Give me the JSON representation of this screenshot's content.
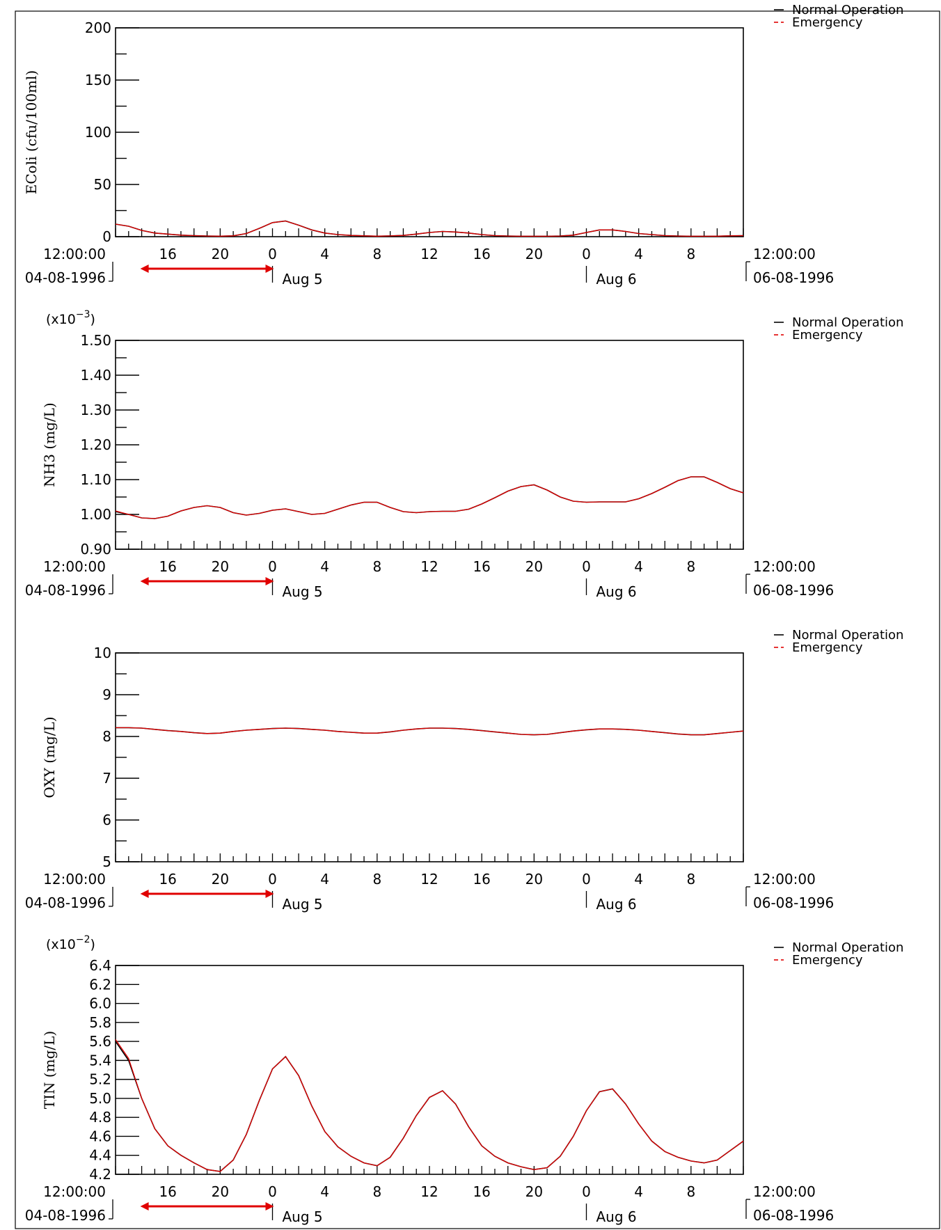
{
  "colors": {
    "normal": "#000000",
    "emergency": "#e00000",
    "arrow": "#e00000",
    "axis": "#000000"
  },
  "x_axis": {
    "hour_ticks": [
      "16",
      "20",
      "0",
      "4",
      "8",
      "12",
      "16",
      "20",
      "0",
      "4",
      "8"
    ],
    "start_time": "12:00:00",
    "start_date": "04-08-1996",
    "end_time": "12:00:00",
    "end_date": "06-08-1996",
    "day_labels": [
      "Aug 5",
      "Aug 6"
    ],
    "arrow_range_hours": [
      2,
      12
    ]
  },
  "legend": [
    "Normal Operation",
    "Emergency"
  ],
  "chart_data": [
    {
      "type": "line",
      "ylabel": "EColi (cfu/100ml)",
      "multiplier": "",
      "ylim": [
        0,
        200
      ],
      "y_ticks": [
        "0",
        "50",
        "100",
        "150",
        "200"
      ],
      "x_hours": [
        0,
        1,
        2,
        3,
        4,
        5,
        6,
        7,
        8,
        9,
        10,
        11,
        12,
        13,
        14,
        15,
        16,
        17,
        18,
        19,
        20,
        21,
        22,
        23,
        24,
        25,
        26,
        27,
        28,
        29,
        30,
        31,
        32,
        33,
        34,
        35,
        36,
        37,
        38,
        39,
        40,
        41,
        42,
        43,
        44,
        45,
        46,
        47,
        48
      ],
      "series": [
        {
          "name": "Normal Operation",
          "values": [
            12,
            10,
            6,
            3.5,
            2.5,
            1.5,
            1,
            0.6,
            0.5,
            0.8,
            3,
            8,
            13.5,
            15,
            11,
            6.5,
            3.5,
            2,
            1.2,
            0.8,
            0.5,
            0.7,
            1.2,
            2.5,
            4,
            5,
            4.5,
            3.5,
            2,
            1,
            0.6,
            0.4,
            0.4,
            0.4,
            0.6,
            1.5,
            4,
            6.5,
            6.5,
            5,
            3,
            2,
            1,
            0.6,
            0.4,
            0.4,
            0.5,
            0.8,
            1
          ]
        },
        {
          "name": "Emergency",
          "values": [
            12,
            10,
            6,
            3.5,
            2.5,
            1.5,
            1,
            0.6,
            0.5,
            0.8,
            3,
            8,
            13.5,
            15,
            11,
            6.5,
            3.5,
            2,
            1.2,
            0.8,
            0.5,
            0.7,
            1.2,
            2.5,
            4,
            5,
            4.5,
            3.5,
            2,
            1,
            0.6,
            0.4,
            0.4,
            0.4,
            0.6,
            1.5,
            4,
            6.5,
            6.5,
            5,
            3,
            2,
            1,
            0.6,
            0.4,
            0.4,
            0.5,
            0.8,
            1
          ]
        }
      ]
    },
    {
      "type": "line",
      "ylabel": "NH3 (mg/L)",
      "multiplier": "(x10",
      "multiplier_exp": "−3",
      "multiplier_close": ")",
      "ylim": [
        0.9,
        1.5
      ],
      "y_ticks": [
        "0.90",
        "1.00",
        "1.10",
        "1.20",
        "1.30",
        "1.40",
        "1.50"
      ],
      "x_hours": [
        0,
        1,
        2,
        3,
        4,
        5,
        6,
        7,
        8,
        9,
        10,
        11,
        12,
        13,
        14,
        15,
        16,
        17,
        18,
        19,
        20,
        21,
        22,
        23,
        24,
        25,
        26,
        27,
        28,
        29,
        30,
        31,
        32,
        33,
        34,
        35,
        36,
        37,
        38,
        39,
        40,
        41,
        42,
        43,
        44,
        45,
        46,
        47,
        48
      ],
      "series": [
        {
          "name": "Normal Operation",
          "values": [
            1.008,
            1.0,
            0.99,
            0.988,
            0.995,
            1.01,
            1.02,
            1.025,
            1.02,
            1.005,
            0.998,
            1.003,
            1.012,
            1.016,
            1.008,
            1.0,
            1.003,
            1.015,
            1.027,
            1.035,
            1.035,
            1.02,
            1.008,
            1.005,
            1.008,
            1.009,
            1.009,
            1.015,
            1.03,
            1.048,
            1.067,
            1.08,
            1.085,
            1.07,
            1.05,
            1.038,
            1.035,
            1.036,
            1.036,
            1.036,
            1.045,
            1.06,
            1.078,
            1.097,
            1.108,
            1.108,
            1.092,
            1.074,
            1.062
          ]
        },
        {
          "name": "Emergency",
          "values": [
            1.01,
            1.0,
            0.99,
            0.988,
            0.995,
            1.01,
            1.02,
            1.025,
            1.02,
            1.005,
            0.998,
            1.003,
            1.012,
            1.016,
            1.008,
            1.0,
            1.003,
            1.015,
            1.027,
            1.035,
            1.035,
            1.02,
            1.008,
            1.005,
            1.008,
            1.009,
            1.009,
            1.015,
            1.03,
            1.048,
            1.067,
            1.08,
            1.085,
            1.07,
            1.05,
            1.038,
            1.035,
            1.036,
            1.036,
            1.036,
            1.045,
            1.06,
            1.078,
            1.097,
            1.108,
            1.108,
            1.092,
            1.074,
            1.062
          ]
        }
      ]
    },
    {
      "type": "line",
      "ylabel": "OXY (mg/L)",
      "multiplier": "",
      "ylim": [
        5,
        10
      ],
      "y_ticks": [
        "5",
        "6",
        "7",
        "8",
        "9",
        "10"
      ],
      "x_hours": [
        0,
        1,
        2,
        3,
        4,
        5,
        6,
        7,
        8,
        9,
        10,
        11,
        12,
        13,
        14,
        15,
        16,
        17,
        18,
        19,
        20,
        21,
        22,
        23,
        24,
        25,
        26,
        27,
        28,
        29,
        30,
        31,
        32,
        33,
        34,
        35,
        36,
        37,
        38,
        39,
        40,
        41,
        42,
        43,
        44,
        45,
        46,
        47,
        48
      ],
      "series": [
        {
          "name": "Normal Operation",
          "values": [
            8.21,
            8.21,
            8.2,
            8.17,
            8.14,
            8.12,
            8.09,
            8.07,
            8.08,
            8.12,
            8.15,
            8.17,
            8.19,
            8.2,
            8.19,
            8.17,
            8.15,
            8.12,
            8.1,
            8.08,
            8.08,
            8.11,
            8.15,
            8.18,
            8.2,
            8.2,
            8.19,
            8.17,
            8.14,
            8.11,
            8.08,
            8.05,
            8.04,
            8.05,
            8.09,
            8.13,
            8.16,
            8.18,
            8.18,
            8.17,
            8.15,
            8.12,
            8.09,
            8.06,
            8.04,
            8.04,
            8.07,
            8.1,
            8.13
          ]
        },
        {
          "name": "Emergency",
          "values": [
            8.21,
            8.21,
            8.2,
            8.17,
            8.14,
            8.12,
            8.09,
            8.07,
            8.08,
            8.12,
            8.15,
            8.17,
            8.19,
            8.2,
            8.19,
            8.17,
            8.15,
            8.12,
            8.1,
            8.08,
            8.08,
            8.11,
            8.15,
            8.18,
            8.2,
            8.2,
            8.19,
            8.17,
            8.14,
            8.11,
            8.08,
            8.05,
            8.04,
            8.05,
            8.09,
            8.13,
            8.16,
            8.18,
            8.18,
            8.17,
            8.15,
            8.12,
            8.09,
            8.06,
            8.04,
            8.04,
            8.07,
            8.1,
            8.13
          ]
        }
      ]
    },
    {
      "type": "line",
      "ylabel": "TIN (mg/L)",
      "multiplier": "(x10",
      "multiplier_exp": "−2",
      "multiplier_close": ")",
      "ylim": [
        4.2,
        6.4
      ],
      "y_ticks": [
        "4.2",
        "4.4",
        "4.6",
        "4.8",
        "5.0",
        "5.2",
        "5.4",
        "5.6",
        "5.8",
        "6.0",
        "6.2",
        "6.4"
      ],
      "x_hours": [
        0,
        1,
        2,
        3,
        4,
        5,
        6,
        7,
        8,
        9,
        10,
        11,
        12,
        13,
        14,
        15,
        16,
        17,
        18,
        19,
        20,
        21,
        22,
        23,
        24,
        25,
        26,
        27,
        28,
        29,
        30,
        31,
        32,
        33,
        34,
        35,
        36,
        37,
        38,
        39,
        40,
        41,
        42,
        43,
        44,
        45,
        46,
        47,
        48
      ],
      "series": [
        {
          "name": "Normal Operation",
          "values": [
            5.6,
            5.4,
            5.0,
            4.68,
            4.5,
            4.4,
            4.32,
            4.25,
            4.23,
            4.35,
            4.62,
            4.98,
            5.31,
            5.44,
            5.24,
            4.92,
            4.65,
            4.49,
            4.39,
            4.32,
            4.29,
            4.38,
            4.58,
            4.82,
            5.01,
            5.08,
            4.94,
            4.7,
            4.5,
            4.39,
            4.32,
            4.28,
            4.25,
            4.27,
            4.39,
            4.6,
            4.87,
            5.07,
            5.1,
            4.94,
            4.73,
            4.55,
            4.44,
            4.38,
            4.34,
            4.32,
            4.35,
            4.45,
            4.55
          ]
        },
        {
          "name": "Emergency",
          "values": [
            5.62,
            5.42,
            5.0,
            4.68,
            4.5,
            4.4,
            4.32,
            4.25,
            4.23,
            4.35,
            4.62,
            4.98,
            5.31,
            5.44,
            5.24,
            4.92,
            4.65,
            4.49,
            4.39,
            4.32,
            4.29,
            4.38,
            4.58,
            4.82,
            5.01,
            5.08,
            4.94,
            4.7,
            4.5,
            4.39,
            4.32,
            4.28,
            4.25,
            4.27,
            4.39,
            4.6,
            4.87,
            5.07,
            5.1,
            4.94,
            4.73,
            4.55,
            4.44,
            4.38,
            4.34,
            4.32,
            4.35,
            4.45,
            4.55
          ]
        }
      ]
    }
  ]
}
